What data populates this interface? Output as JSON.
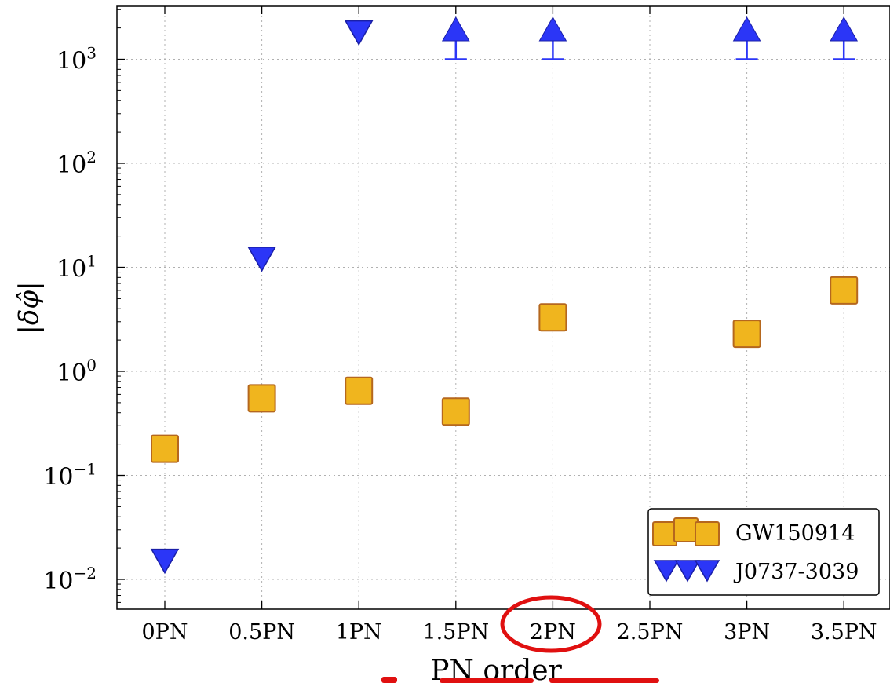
{
  "chart_data": {
    "type": "scatter",
    "xlabel": "PN order",
    "ylabel": "|δφ̂|",
    "yscale": "log",
    "ylim": [
      0.005,
      3000
    ],
    "grid": true,
    "legend_position": "lower-right",
    "categories": [
      "0PN",
      "0.5PN",
      "1PN",
      "1.5PN",
      "2PN",
      "2.5PN",
      "3PN",
      "3.5PN"
    ],
    "y_ticks": [
      {
        "base": "10",
        "exp": "3",
        "value": 1000
      },
      {
        "base": "10",
        "exp": "2",
        "value": 100
      },
      {
        "base": "10",
        "exp": "1",
        "value": 10
      },
      {
        "base": "10",
        "exp": "0",
        "value": 1
      },
      {
        "base": "10",
        "exp": "−1",
        "value": 0.1
      },
      {
        "base": "10",
        "exp": "−2",
        "value": 0.01
      }
    ],
    "series": [
      {
        "name": "GW150914",
        "marker": "square",
        "color": "#f0b51e",
        "edge_color": "#b5671e",
        "points": [
          {
            "x": "0PN",
            "y": 0.18
          },
          {
            "x": "0.5PN",
            "y": 0.55
          },
          {
            "x": "1PN",
            "y": 0.65
          },
          {
            "x": "1.5PN",
            "y": 0.41
          },
          {
            "x": "2PN",
            "y": 3.3
          },
          {
            "x": "3PN",
            "y": 2.3
          },
          {
            "x": "3.5PN",
            "y": 6.0
          }
        ]
      },
      {
        "name": "J0737-3039",
        "marker": "triangle-down",
        "color": "#2b36f7",
        "edge_color": "#1a1fa8",
        "points": [
          {
            "x": "0PN",
            "y": 0.015
          },
          {
            "x": "0.5PN",
            "y": 12
          },
          {
            "x": "1PN",
            "y": 1800
          }
        ],
        "lower_limits": [
          {
            "x": "1.5PN",
            "y": 1000
          },
          {
            "x": "2PN",
            "y": 1000
          },
          {
            "x": "3PN",
            "y": 1000
          },
          {
            "x": "3.5PN",
            "y": 1000
          }
        ]
      }
    ]
  },
  "highlight": {
    "target": "2PN",
    "color": "#e01010"
  }
}
